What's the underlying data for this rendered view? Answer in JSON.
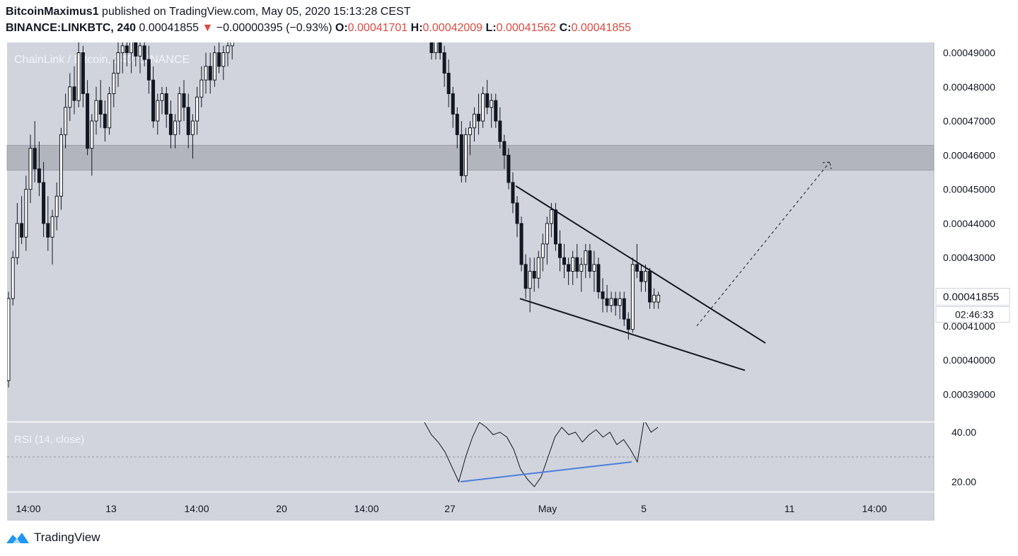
{
  "header": {
    "author": "BitcoinMaximus1",
    "published_text": "published on TradingView.com, May 05, 2020 15:13:28 CEST",
    "symbol_interval": "BINANCE:LINKBTC, 240",
    "last_price": "0.00041855",
    "change": "−0.00000395 (−0.93%)",
    "ohlc": [
      {
        "key": "O:",
        "value": "0.00041701"
      },
      {
        "key": "H:",
        "value": "0.00042009"
      },
      {
        "key": "L:",
        "value": "0.00041562"
      },
      {
        "key": "C:",
        "value": "0.00041855"
      }
    ]
  },
  "footer": {
    "brand": "TradingView"
  },
  "colors": {
    "pane_bg": "#d1d4dc",
    "zone": "#b2b5be",
    "candle": "#131722",
    "rsi_line": "#131722",
    "divergence": "#4a7fe0",
    "down_red": "#e0483f"
  },
  "chart_data": [
    {
      "type": "candlestick",
      "title": "ChainLink / Bitcoin, 240, BINANCE",
      "x_tick_labels": [
        "14:00",
        "13",
        "14:00",
        "20",
        "14:00",
        "27",
        "May",
        "5",
        "11",
        "14:00"
      ],
      "y_tick_labels": [
        "0.00049000",
        "0.00048000",
        "0.00047000",
        "0.00046000",
        "0.00045000",
        "0.00044000",
        "0.00043000",
        "0.00041000",
        "0.00040000",
        "0.00039000"
      ],
      "ylim": [
        0.000382,
        0.000493
      ],
      "last_price_label": "0.00041855",
      "countdown": "02:46:33",
      "resistance_zone": [
        0.0004556,
        0.0004629
      ],
      "candles_early": [
        [
          0.000394,
          0.00042,
          0.000392,
          0.000418
        ],
        [
          0.000418,
          0.000432,
          0.000416,
          0.00043
        ],
        [
          0.00043,
          0.000446,
          0.000428,
          0.00044
        ],
        [
          0.00044,
          0.000448,
          0.000434,
          0.000436
        ],
        [
          0.000436,
          0.000454,
          0.000432,
          0.00045
        ],
        [
          0.00045,
          0.000466,
          0.000446,
          0.000462
        ],
        [
          0.000462,
          0.00047,
          0.000452,
          0.000456
        ],
        [
          0.000456,
          0.000464,
          0.000448,
          0.000452
        ],
        [
          0.000452,
          0.000458,
          0.000436,
          0.00044
        ],
        [
          0.00044,
          0.000448,
          0.000432,
          0.000436
        ],
        [
          0.000436,
          0.000444,
          0.000428,
          0.000442
        ],
        [
          0.000442,
          0.000452,
          0.000438,
          0.000448
        ],
        [
          0.000448,
          0.000468,
          0.000444,
          0.000466
        ],
        [
          0.000466,
          0.000478,
          0.000462,
          0.000474
        ],
        [
          0.000474,
          0.000484,
          0.00047,
          0.00048
        ],
        [
          0.00048,
          0.000486,
          0.000472,
          0.000476
        ],
        [
          0.000476,
          0.000494,
          0.000474,
          0.00049
        ],
        [
          0.00049,
          0.000492,
          0.000474,
          0.000478
        ],
        [
          0.000478,
          0.000482,
          0.00046,
          0.000462
        ],
        [
          0.000462,
          0.000472,
          0.000454,
          0.00047
        ],
        [
          0.00047,
          0.00048,
          0.000466,
          0.000476
        ],
        [
          0.000476,
          0.000482,
          0.000468,
          0.000472
        ],
        [
          0.000472,
          0.000476,
          0.000464,
          0.000468
        ],
        [
          0.000468,
          0.00048,
          0.000466,
          0.000478
        ],
        [
          0.000478,
          0.000488,
          0.000474,
          0.000484
        ],
        [
          0.000484,
          0.000494,
          0.00048,
          0.00049
        ],
        [
          0.00049,
          0.000495,
          0.000484,
          0.000492
        ],
        [
          0.000492,
          0.000495,
          0.000486,
          0.00049
        ],
        [
          0.00049,
          0.000495,
          0.000484,
          0.000494
        ],
        [
          0.000494,
          0.000495,
          0.000486,
          0.000489
        ],
        [
          0.000489,
          0.000494,
          0.000484,
          0.000492
        ],
        [
          0.000492,
          0.000495,
          0.000486,
          0.000488
        ],
        [
          0.000488,
          0.000492,
          0.000478,
          0.000482
        ],
        [
          0.000482,
          0.000486,
          0.000468,
          0.00047
        ],
        [
          0.00047,
          0.000478,
          0.000466,
          0.000476
        ],
        [
          0.000476,
          0.00048,
          0.000472,
          0.000478
        ],
        [
          0.000478,
          0.00048,
          0.000468,
          0.000472
        ],
        [
          0.000472,
          0.000476,
          0.000462,
          0.000466
        ],
        [
          0.000466,
          0.000472,
          0.000462,
          0.00047
        ],
        [
          0.00047,
          0.00048,
          0.000466,
          0.000478
        ],
        [
          0.000478,
          0.000482,
          0.00047,
          0.000474
        ],
        [
          0.000474,
          0.000478,
          0.000462,
          0.000466
        ],
        [
          0.000466,
          0.000472,
          0.000459,
          0.00047
        ],
        [
          0.00047,
          0.00048,
          0.000466,
          0.000477
        ],
        [
          0.000477,
          0.000486,
          0.000474,
          0.000482
        ],
        [
          0.000482,
          0.00049,
          0.000478,
          0.000486
        ],
        [
          0.000486,
          0.00049,
          0.000478,
          0.000482
        ],
        [
          0.000482,
          0.000492,
          0.00048,
          0.00049
        ],
        [
          0.00049,
          0.000494,
          0.000484,
          0.000486
        ],
        [
          0.000486,
          0.000492,
          0.000482,
          0.00049
        ],
        [
          0.00049,
          0.000495,
          0.000486,
          0.000492
        ],
        [
          0.000492,
          0.000495,
          0.000488,
          0.000494
        ]
      ],
      "candles_late": [
        [
          0.000496,
          0.000496,
          0.000488,
          0.00049
        ],
        [
          0.00049,
          0.000496,
          0.000488,
          0.000494
        ],
        [
          0.000494,
          0.000495,
          0.000488,
          0.00049
        ],
        [
          0.00049,
          0.000492,
          0.00048,
          0.000484
        ],
        [
          0.000484,
          0.000488,
          0.000474,
          0.000478
        ],
        [
          0.000478,
          0.00048,
          0.000468,
          0.000472
        ],
        [
          0.000472,
          0.000474,
          0.000462,
          0.000466
        ],
        [
          0.000466,
          0.00047,
          0.000452,
          0.000454
        ],
        [
          0.000454,
          0.000468,
          0.000452,
          0.000466
        ],
        [
          0.000466,
          0.00047,
          0.00046,
          0.000468
        ],
        [
          0.000468,
          0.000474,
          0.000464,
          0.000472
        ],
        [
          0.000472,
          0.000478,
          0.000466,
          0.00047
        ],
        [
          0.00047,
          0.00048,
          0.000468,
          0.000478
        ],
        [
          0.000478,
          0.000482,
          0.000472,
          0.000474
        ],
        [
          0.000474,
          0.000478,
          0.000468,
          0.000476
        ],
        [
          0.000476,
          0.000478,
          0.000468,
          0.00047
        ],
        [
          0.00047,
          0.000474,
          0.000462,
          0.000464
        ],
        [
          0.000464,
          0.000466,
          0.000456,
          0.00046
        ],
        [
          0.00046,
          0.000462,
          0.00045,
          0.000452
        ],
        [
          0.000452,
          0.000455,
          0.000443,
          0.000446
        ],
        [
          0.000446,
          0.000448,
          0.000436,
          0.00044
        ],
        [
          0.00044,
          0.000442,
          0.000426,
          0.000428
        ],
        [
          0.000428,
          0.000431,
          0.000418,
          0.000421
        ],
        [
          0.000421,
          0.00043,
          0.000414,
          0.000426
        ],
        [
          0.000426,
          0.00043,
          0.00042,
          0.000424
        ],
        [
          0.000424,
          0.000432,
          0.000421,
          0.00043
        ],
        [
          0.00043,
          0.000437,
          0.000426,
          0.000434
        ],
        [
          0.000434,
          0.000442,
          0.000428,
          0.00044
        ],
        [
          0.00044,
          0.000446,
          0.000436,
          0.000444
        ],
        [
          0.000444,
          0.000446,
          0.000432,
          0.000434
        ],
        [
          0.000434,
          0.000438,
          0.000426,
          0.00043
        ],
        [
          0.00043,
          0.000434,
          0.000424,
          0.000428
        ],
        [
          0.000428,
          0.00043,
          0.000422,
          0.000426
        ],
        [
          0.000426,
          0.000432,
          0.000422,
          0.00043
        ],
        [
          0.00043,
          0.000434,
          0.000424,
          0.000426
        ],
        [
          0.000426,
          0.00043,
          0.00042,
          0.000428
        ],
        [
          0.000428,
          0.000434,
          0.000424,
          0.000432
        ],
        [
          0.000432,
          0.000434,
          0.000424,
          0.000426
        ],
        [
          0.000426,
          0.000432,
          0.00042,
          0.000428
        ],
        [
          0.000428,
          0.00043,
          0.000418,
          0.00042
        ],
        [
          0.00042,
          0.000424,
          0.000414,
          0.000418
        ],
        [
          0.000418,
          0.000422,
          0.000414,
          0.000416
        ],
        [
          0.000416,
          0.00042,
          0.000414,
          0.000418
        ],
        [
          0.000418,
          0.00042,
          0.000413,
          0.000416
        ],
        [
          0.000416,
          0.00042,
          0.000412,
          0.000418
        ],
        [
          0.000418,
          0.00042,
          0.00041,
          0.000412
        ],
        [
          0.000412,
          0.000414,
          0.000406,
          0.000409
        ],
        [
          0.000409,
          0.00043,
          0.000408,
          0.000428
        ],
        [
          0.000428,
          0.000434,
          0.000424,
          0.000426
        ],
        [
          0.000426,
          0.000428,
          0.00042,
          0.000423
        ],
        [
          0.000423,
          0.000428,
          0.00042,
          0.000426
        ],
        [
          0.000426,
          0.000427,
          0.000415,
          0.000417
        ],
        [
          0.000417,
          0.000421,
          0.000415,
          0.000419
        ],
        [
          0.000417,
          0.00042,
          0.000415,
          0.000419
        ]
      ],
      "wedge_upper": [
        [
          0.000451,
          0.000405
        ]
      ],
      "wedge_lower": [
        [
          0.000418,
          0.000397
        ]
      ],
      "projection": [
        [
          0.00041,
          0.000458
        ]
      ]
    },
    {
      "type": "line",
      "title": "RSI (14, close)",
      "y_tick_labels": [
        "40.00",
        "20.00"
      ],
      "ylim": [
        16,
        44
      ],
      "reference_level": 30,
      "rsi_values": [
        44,
        39,
        36,
        32,
        26,
        20,
        30,
        38,
        44,
        42,
        39,
        40,
        38,
        33,
        25,
        21,
        18,
        22,
        30,
        38,
        42,
        39,
        40,
        36,
        39,
        41,
        38,
        40,
        35,
        37,
        33,
        28,
        45,
        40,
        42
      ],
      "divergence": [
        [
          20,
          28
        ]
      ]
    }
  ]
}
